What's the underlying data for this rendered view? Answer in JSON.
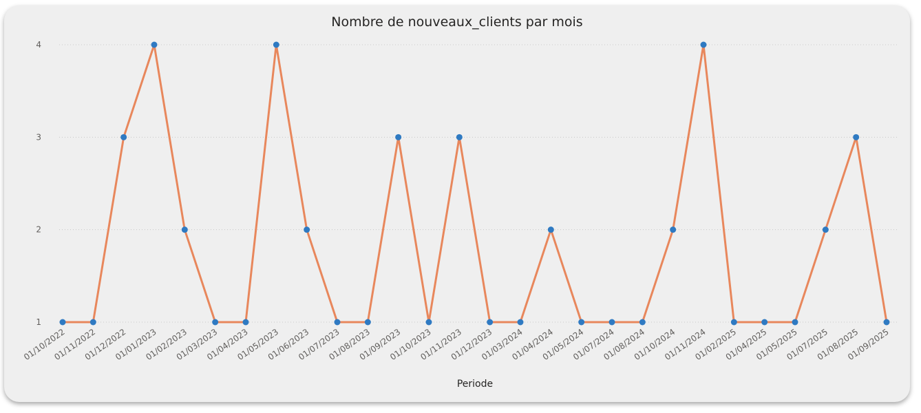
{
  "chart_data": {
    "type": "line",
    "title": "Nombre de nouveaux_clients par mois",
    "xlabel": "Periode",
    "ylabel": "",
    "ylim": [
      1,
      4
    ],
    "yticks": [
      1,
      2,
      3,
      4
    ],
    "grid": true,
    "categories": [
      "01/10/2022",
      "01/11/2022",
      "01/12/2022",
      "01/01/2023",
      "01/02/2023",
      "01/03/2023",
      "01/04/2023",
      "01/05/2023",
      "01/06/2023",
      "01/07/2023",
      "01/08/2023",
      "01/09/2023",
      "01/10/2023",
      "01/11/2023",
      "01/12/2023",
      "01/03/2024",
      "01/04/2024",
      "01/05/2024",
      "01/07/2024",
      "01/08/2024",
      "01/10/2024",
      "01/11/2024",
      "01/02/2025",
      "01/04/2025",
      "01/05/2025",
      "01/07/2025",
      "01/08/2025",
      "01/09/2025"
    ],
    "series": [
      {
        "values": [
          1,
          1,
          3,
          4,
          2,
          1,
          1,
          4,
          2,
          1,
          1,
          3,
          1,
          3,
          1,
          1,
          2,
          1,
          1,
          1,
          2,
          4,
          1,
          1,
          1,
          2,
          3,
          1
        ],
        "line_color": "#e8875c",
        "marker_color": "#2f7ac2"
      }
    ]
  }
}
